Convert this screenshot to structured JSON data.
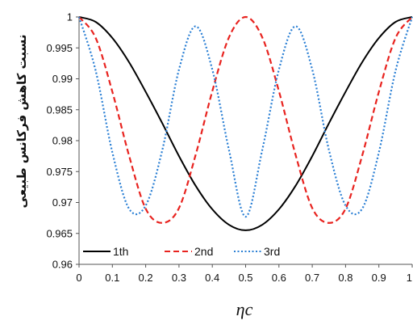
{
  "chart_data": {
    "type": "line",
    "title": "",
    "xlabel": "ηc",
    "ylabel": "نسبت کاهش فرکانس طبیعی",
    "xlim": [
      0,
      1
    ],
    "ylim": [
      0.96,
      1
    ],
    "grid": false,
    "legend_position": "bottom-left",
    "x_ticks": [
      "0",
      "0.1",
      "0.2",
      "0.3",
      "0.4",
      "0.5",
      "0.6",
      "0.7",
      "0.8",
      "0.9",
      "1"
    ],
    "y_ticks": [
      "0.96",
      "0.965",
      "0.97",
      "0.975",
      "0.98",
      "0.985",
      "0.99",
      "0.995",
      "1"
    ],
    "x": [
      0,
      0.05,
      0.1,
      0.15,
      0.2,
      0.25,
      0.3,
      0.35,
      0.4,
      0.45,
      0.5,
      0.55,
      0.6,
      0.65,
      0.7,
      0.75,
      0.8,
      0.85,
      0.9,
      0.95,
      1
    ],
    "series": [
      {
        "name": "1th",
        "color": "#000000",
        "dash": "solid",
        "values": [
          1.0,
          0.9992,
          0.9966,
          0.9927,
          0.9879,
          0.9828,
          0.9775,
          0.9727,
          0.9689,
          0.9664,
          0.9655,
          0.9664,
          0.9689,
          0.9727,
          0.9775,
          0.9828,
          0.9879,
          0.9927,
          0.9966,
          0.9992,
          1.0
        ]
      },
      {
        "name": "2nd",
        "color": "#e8231f",
        "dash": "dashed",
        "values": [
          1.0,
          0.9966,
          0.9879,
          0.9776,
          0.969,
          0.9667,
          0.9691,
          0.9777,
          0.988,
          0.9967,
          1.0,
          0.9967,
          0.988,
          0.9777,
          0.9691,
          0.9667,
          0.969,
          0.9776,
          0.9879,
          0.9966,
          1.0
        ]
      },
      {
        "name": "3rd",
        "color": "#2a7fd4",
        "dash": "dotted",
        "values": [
          1.0,
          0.9913,
          0.9781,
          0.969,
          0.9695,
          0.9785,
          0.9915,
          0.9985,
          0.9915,
          0.9785,
          0.9677,
          0.9785,
          0.9915,
          0.9985,
          0.9915,
          0.9785,
          0.9695,
          0.969,
          0.9781,
          0.9913,
          1.0
        ]
      }
    ]
  }
}
